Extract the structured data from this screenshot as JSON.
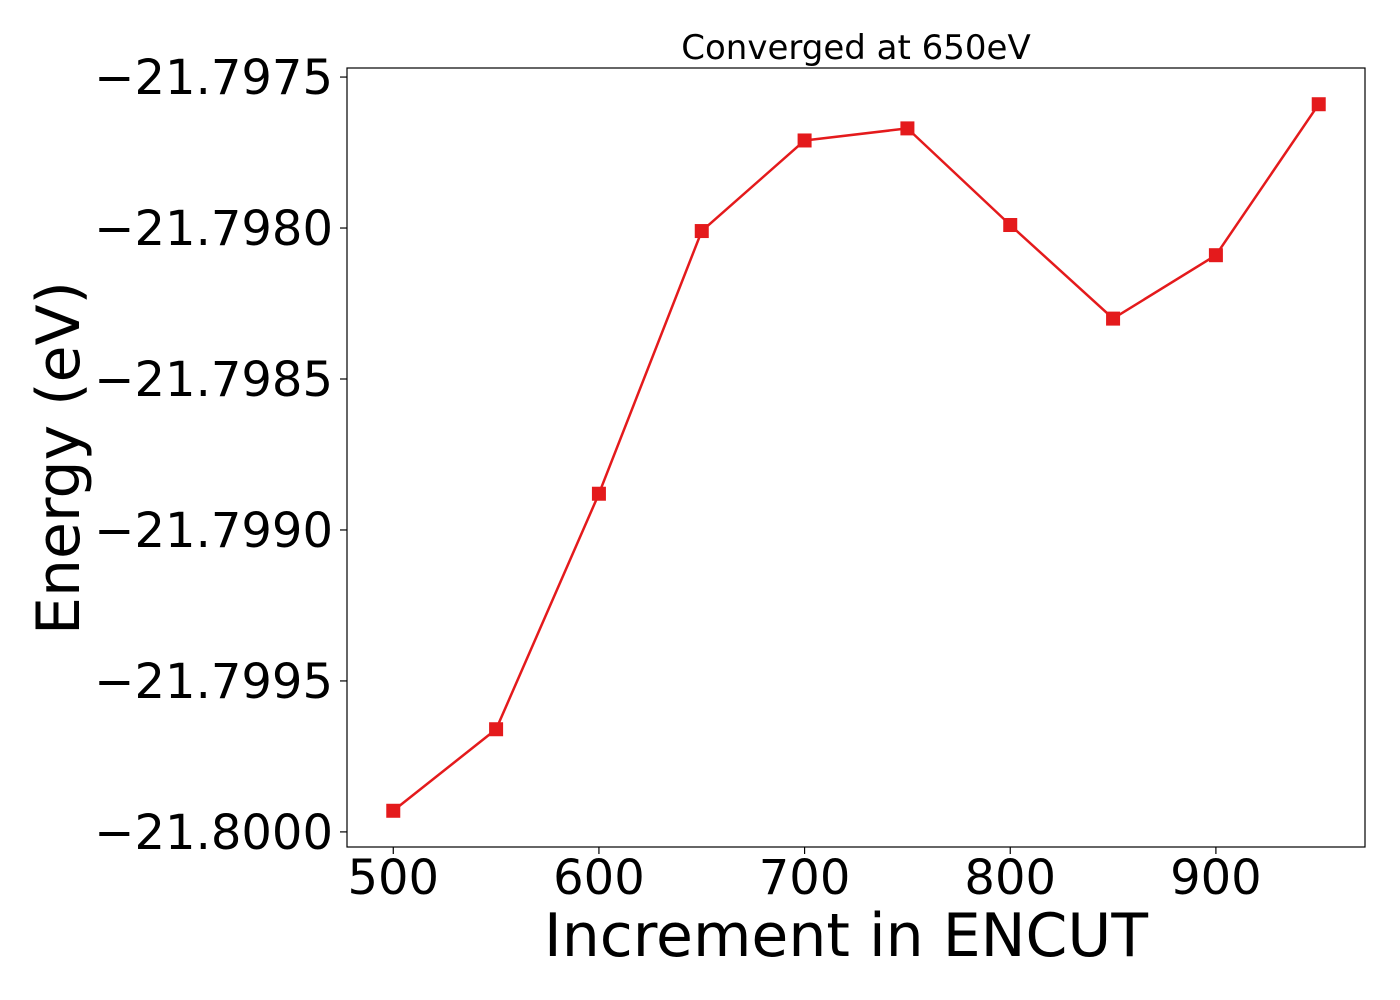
{
  "chart_data": {
    "type": "line",
    "title": "Converged at 650eV",
    "xlabel": "Increment in ENCUT",
    "ylabel": "Energy (eV)",
    "x": [
      500,
      550,
      600,
      650,
      700,
      750,
      800,
      850,
      900,
      950
    ],
    "series": [
      {
        "values": [
          -21.79993,
          -21.79966,
          -21.79888,
          -21.79801,
          -21.79771,
          -21.79767,
          -21.79799,
          -21.7983,
          -21.79809,
          -21.79759
        ],
        "color": "#e41a1c",
        "marker": "square"
      }
    ],
    "xlim": [
      477.5,
      972.5
    ],
    "ylim": [
      -21.80005,
      -21.79747
    ],
    "xticks": [
      500,
      600,
      700,
      800,
      900
    ],
    "xtick_labels": [
      "500",
      "600",
      "700",
      "800",
      "900"
    ],
    "yticks": [
      -21.8,
      -21.7995,
      -21.799,
      -21.7985,
      -21.798,
      -21.7975
    ],
    "ytick_labels": [
      "−21.8000",
      "−21.7995",
      "−21.7990",
      "−21.7985",
      "−21.7980",
      "−21.7975"
    ],
    "grid": false,
    "legend": false
  }
}
